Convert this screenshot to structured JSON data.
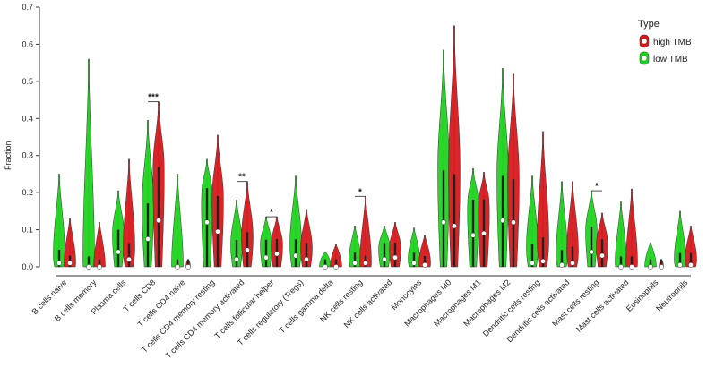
{
  "chart_data": {
    "type": "violin",
    "title": "",
    "xlabel": "",
    "ylabel": "Fraction",
    "ylim": [
      0,
      0.7
    ],
    "yticks": [
      "0.0",
      "0.1",
      "0.2",
      "0.3",
      "0.4",
      "0.5",
      "0.6",
      "0.7"
    ],
    "categories": [
      "B cells naive",
      "B cells memory",
      "Plasma cells",
      "T cells CD8",
      "T cells CD4 naive",
      "T cells CD4 memory resting",
      "T cells CD4 memory activated",
      "T cells follicular helper",
      "T cells regulatory (Tregs)",
      "T cells gamma delta",
      "NK cells resting",
      "NK cells activated",
      "Monocytes",
      "Macrophages M0",
      "Macrophages M1",
      "Macrophages M2",
      "Dendritic cells resting",
      "Dendritic cells activated",
      "Mast cells resting",
      "Mast cells activated",
      "Eosinophils",
      "Neutrophils"
    ],
    "legend": {
      "title": "Type",
      "position": "top-right",
      "entries": [
        {
          "label": "high TMB",
          "color": "#d7191c"
        },
        {
          "label": "low TMB",
          "color": "#1ed41e"
        }
      ]
    },
    "series": [
      {
        "name": "low TMB",
        "color": "#1ed41e",
        "max": [
          0.25,
          0.56,
          0.205,
          0.395,
          0.25,
          0.29,
          0.18,
          0.135,
          0.245,
          0.04,
          0.11,
          0.11,
          0.105,
          0.585,
          0.265,
          0.535,
          0.245,
          0.23,
          0.205,
          0.175,
          0.065,
          0.15
        ],
        "median": [
          0.01,
          0.0,
          0.04,
          0.075,
          0.0,
          0.12,
          0.02,
          0.025,
          0.03,
          0.0,
          0.01,
          0.02,
          0.01,
          0.12,
          0.085,
          0.125,
          0.01,
          0.005,
          0.04,
          0.0,
          0.0,
          0.005
        ],
        "peak": [
          0.03,
          0.01,
          0.09,
          0.17,
          0.0,
          0.21,
          0.06,
          0.06,
          0.06,
          0.0,
          0.02,
          0.05,
          0.02,
          0.27,
          0.18,
          0.25,
          0.05,
          0.03,
          0.1,
          0.01,
          0.0,
          0.02
        ]
      },
      {
        "name": "high TMB",
        "color": "#d7191c",
        "max": [
          0.13,
          0.12,
          0.29,
          0.445,
          0.02,
          0.355,
          0.23,
          0.135,
          0.155,
          0.06,
          0.19,
          0.12,
          0.085,
          0.65,
          0.255,
          0.52,
          0.365,
          0.23,
          0.145,
          0.21,
          0.02,
          0.11
        ],
        "median": [
          0.01,
          0.0,
          0.02,
          0.125,
          0.0,
          0.095,
          0.045,
          0.035,
          0.02,
          0.0,
          0.01,
          0.025,
          0.005,
          0.11,
          0.09,
          0.12,
          0.015,
          0.01,
          0.03,
          0.0,
          0.0,
          0.005
        ],
        "peak": [
          0.01,
          0.0,
          0.05,
          0.28,
          0.0,
          0.19,
          0.08,
          0.06,
          0.05,
          0.0,
          0.01,
          0.05,
          0.01,
          0.26,
          0.18,
          0.24,
          0.07,
          0.04,
          0.06,
          0.01,
          0.0,
          0.02
        ]
      }
    ],
    "significance": [
      {
        "category": "T cells CD8",
        "label": "***",
        "y": 0.445
      },
      {
        "category": "T cells CD4 memory activated",
        "label": "**",
        "y": 0.23
      },
      {
        "category": "T cells follicular helper",
        "label": "*",
        "y": 0.135
      },
      {
        "category": "NK cells resting",
        "label": "*",
        "y": 0.19
      },
      {
        "category": "Mast cells resting",
        "label": "*",
        "y": 0.205
      }
    ]
  }
}
